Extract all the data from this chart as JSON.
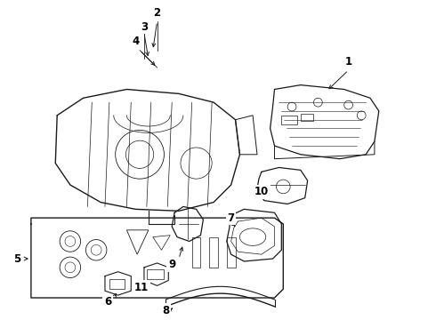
{
  "background_color": "#ffffff",
  "line_color": "#1a1a1a",
  "label_color": "#000000",
  "fig_width": 4.9,
  "fig_height": 3.6,
  "dpi": 100
}
